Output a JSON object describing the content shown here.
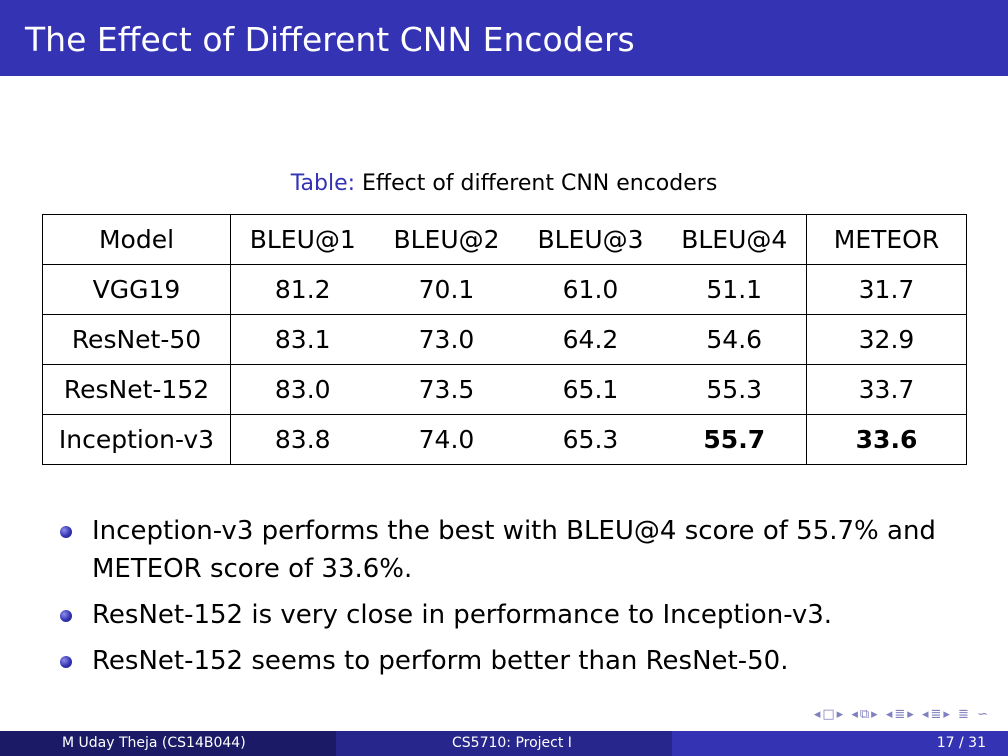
{
  "title": "The Effect of Different CNN Encoders",
  "caption": {
    "label": "Table:",
    "text": "Effect of different CNN encoders"
  },
  "table": {
    "headers": [
      "Model",
      "BLEU@1",
      "BLEU@2",
      "BLEU@3",
      "BLEU@4",
      "METEOR"
    ],
    "rows": [
      [
        "VGG19",
        "81.2",
        "70.1",
        "61.0",
        "51.1",
        "31.7"
      ],
      [
        "ResNet-50",
        "83.1",
        "73.0",
        "64.2",
        "54.6",
        "32.9"
      ],
      [
        "ResNet-152",
        "83.0",
        "73.5",
        "65.1",
        "55.3",
        "33.7"
      ],
      [
        "Inception-v3",
        "83.8",
        "74.0",
        "65.3",
        "55.7",
        "33.6"
      ]
    ]
  },
  "bullets": [
    "Inception-v3 performs the best with BLEU@4 score of 55.7% and METEOR score of 33.6%.",
    "ResNet-152 is very close in performance to Inception-v3.",
    "ResNet-152 seems to perform better than ResNet-50."
  ],
  "footer": {
    "author": "M Uday Theja  (CS14B044)",
    "course": "CS5710: Project I",
    "page": "17 / 31"
  },
  "nav_icons": [
    "prev-frame-icon",
    "next-frame-icon",
    "prev-subsection-icon",
    "next-subsection-icon",
    "prev-section-icon",
    "next-section-icon",
    "outline-icon",
    "search-icon"
  ],
  "colors": {
    "theme": "#3333b3",
    "footer_dark": "#1a1a66",
    "footer_mid": "#26268c"
  }
}
